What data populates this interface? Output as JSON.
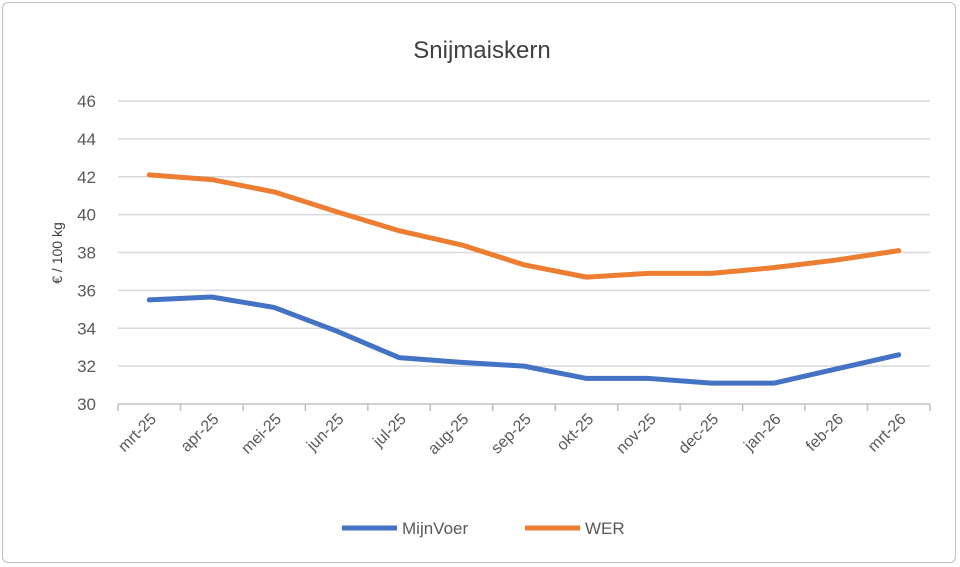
{
  "chart_data": {
    "type": "line",
    "title": "Snijmaiskern",
    "xlabel": "",
    "ylabel": "€ / 100 kg",
    "ylim": [
      30,
      46
    ],
    "yticks": [
      30,
      32,
      34,
      36,
      38,
      40,
      42,
      44,
      46
    ],
    "grid": true,
    "legend_position": "bottom",
    "categories": [
      "mrt-25",
      "apr-25",
      "mei-25",
      "jun-25",
      "jul-25",
      "aug-25",
      "sep-25",
      "okt-25",
      "nov-25",
      "dec-25",
      "jan-26",
      "feb-26",
      "mrt-26"
    ],
    "series": [
      {
        "name": "MijnVoer",
        "color": "#4472c4",
        "values": [
          35.5,
          35.65,
          35.1,
          33.85,
          32.45,
          32.2,
          32.0,
          31.35,
          31.35,
          31.1,
          31.1,
          31.85,
          32.6
        ]
      },
      {
        "name": "WER",
        "color": "#ed7d31",
        "values": [
          42.1,
          41.85,
          41.2,
          40.15,
          39.15,
          38.4,
          37.35,
          36.7,
          36.9,
          36.9,
          37.2,
          37.6,
          38.1
        ]
      }
    ]
  }
}
